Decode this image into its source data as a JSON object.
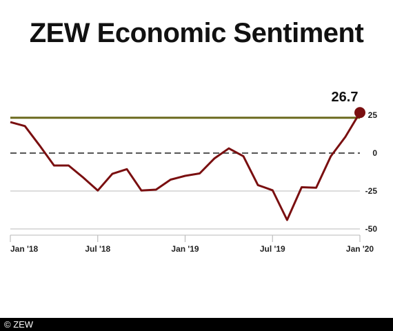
{
  "title": "ZEW Economic Sentiment",
  "footer": "© ZEW",
  "chart_data": {
    "type": "line",
    "title": "ZEW Economic Sentiment",
    "x": [
      "2018-01",
      "2018-02",
      "2018-03",
      "2018-04",
      "2018-05",
      "2018-06",
      "2018-07",
      "2018-08",
      "2018-09",
      "2018-10",
      "2018-11",
      "2018-12",
      "2019-01",
      "2019-02",
      "2019-03",
      "2019-04",
      "2019-05",
      "2019-06",
      "2019-07",
      "2019-08",
      "2019-09",
      "2019-10",
      "2019-11",
      "2019-12",
      "2020-01"
    ],
    "x_tick_labels": [
      "Jan '18",
      "Jul '18",
      "Jan '19",
      "Jul '19",
      "Jan '20"
    ],
    "y_tick_labels": [
      "25",
      "0",
      "-25",
      "-50"
    ],
    "ylim": [
      -50,
      25
    ],
    "series": [
      {
        "color": "#7a0f10",
        "values": [
          20.4,
          17.8,
          5.1,
          -8.2,
          -8.2,
          -16.1,
          -24.7,
          -13.7,
          -10.6,
          -24.7,
          -24.1,
          -17.5,
          -15.0,
          -13.4,
          -3.6,
          3.1,
          -2.1,
          -21.1,
          -24.5,
          -44.1,
          -22.5,
          -22.8,
          -2.1,
          10.7,
          26.7
        ]
      }
    ],
    "reference_line": {
      "value": 23.3,
      "color": "#6b6a1e"
    },
    "zero_line": {
      "value": 0,
      "style": "dashed"
    },
    "last_value_label": "26.7",
    "grid": true,
    "axis_side": "right"
  }
}
